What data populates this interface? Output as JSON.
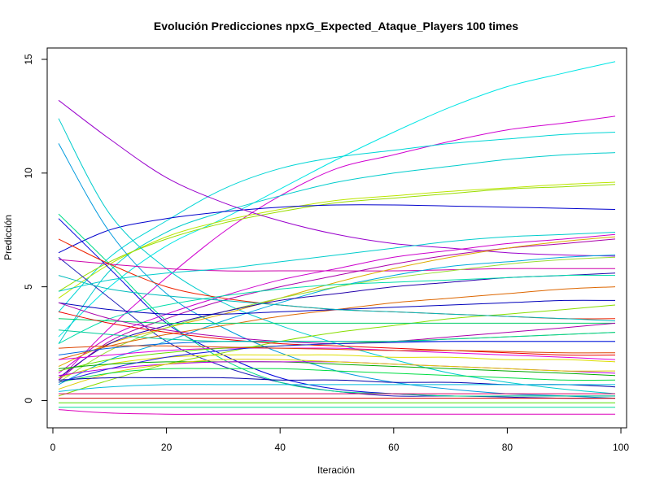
{
  "chart_data": {
    "type": "line",
    "title": "Evolución Predicciones npxG_Expected_Ataque_Players 100 times",
    "xlabel": "Iteración",
    "ylabel": "Predicción",
    "xlim": [
      -1,
      101
    ],
    "ylim": [
      -1.2,
      15.5
    ],
    "xticks": [
      0,
      20,
      40,
      60,
      80,
      100
    ],
    "yticks": [
      0,
      5,
      10,
      15
    ],
    "grid": false,
    "legend": "none",
    "x": [
      1,
      10,
      20,
      30,
      40,
      50,
      60,
      70,
      80,
      90,
      99
    ],
    "series": [
      {
        "color": "#00E5E5",
        "values": [
          2.8,
          5.0,
          6.8,
          8.0,
          9.3,
          10.6,
          11.8,
          12.9,
          13.8,
          14.4,
          14.9
        ]
      },
      {
        "color": "#D000D0",
        "values": [
          0.9,
          3.2,
          5.4,
          7.4,
          9.0,
          10.2,
          10.8,
          11.4,
          11.9,
          12.2,
          12.5
        ]
      },
      {
        "color": "#00D5D5",
        "values": [
          3.9,
          6.3,
          7.9,
          9.3,
          10.2,
          10.7,
          11.0,
          11.3,
          11.5,
          11.7,
          11.8
        ]
      },
      {
        "color": "#00CCCC",
        "values": [
          2.5,
          5.7,
          7.4,
          8.3,
          9.0,
          9.6,
          10.0,
          10.3,
          10.6,
          10.8,
          10.9
        ]
      },
      {
        "color": "#BBE500",
        "values": [
          4.5,
          6.0,
          7.2,
          7.9,
          8.4,
          8.8,
          9.0,
          9.2,
          9.35,
          9.5,
          9.6
        ]
      },
      {
        "color": "#99DD00",
        "values": [
          4.8,
          6.1,
          7.1,
          7.8,
          8.3,
          8.7,
          8.9,
          9.1,
          9.3,
          9.4,
          9.5
        ]
      },
      {
        "color": "#0000CC",
        "values": [
          6.5,
          7.5,
          8.0,
          8.3,
          8.5,
          8.6,
          8.6,
          8.55,
          8.5,
          8.45,
          8.4
        ]
      },
      {
        "color": "#9900CC",
        "values": [
          13.2,
          11.5,
          9.8,
          8.7,
          7.9,
          7.3,
          6.9,
          6.7,
          6.5,
          6.4,
          6.35
        ]
      },
      {
        "color": "#00CCCC",
        "values": [
          12.4,
          8.2,
          5.8,
          4.3,
          3.3,
          2.5,
          1.8,
          1.2,
          0.8,
          0.5,
          0.3
        ]
      },
      {
        "color": "#0099DD",
        "values": [
          11.3,
          7.4,
          4.7,
          3.2,
          2.1,
          1.3,
          0.8,
          0.5,
          0.3,
          0.2,
          0.1
        ]
      },
      {
        "color": "#0000DD",
        "values": [
          8.0,
          5.8,
          3.4,
          2.0,
          1.0,
          0.5,
          0.3,
          0.2,
          0.2,
          0.2,
          0.2
        ]
      },
      {
        "color": "#2222BB",
        "values": [
          6.3,
          4.5,
          2.6,
          1.5,
          0.8,
          0.4,
          0.2,
          0.2,
          0.15,
          0.1,
          0.1
        ]
      },
      {
        "color": "#00DD88",
        "values": [
          8.2,
          6.0,
          3.5,
          1.8,
          0.8,
          0.4,
          0.3,
          0.2,
          0.2,
          0.2,
          0.2
        ]
      },
      {
        "color": "#EE2200",
        "values": [
          7.1,
          6.0,
          5.0,
          4.5,
          4.2,
          4.0,
          3.9,
          3.8,
          3.7,
          3.6,
          3.6
        ]
      },
      {
        "color": "#CC00AA",
        "values": [
          6.2,
          6.0,
          5.8,
          5.7,
          5.7,
          5.7,
          5.7,
          5.75,
          5.8,
          5.8,
          5.8
        ]
      },
      {
        "color": "#00CCCC",
        "values": [
          4.8,
          5.3,
          5.6,
          5.8,
          6.1,
          6.4,
          6.7,
          7.0,
          7.2,
          7.3,
          7.4
        ]
      },
      {
        "color": "#CC00CC",
        "values": [
          1.2,
          2.8,
          3.8,
          4.6,
          5.3,
          5.8,
          6.3,
          6.6,
          6.9,
          7.1,
          7.3
        ]
      },
      {
        "color": "#AA00AA",
        "values": [
          0.9,
          2.6,
          3.6,
          4.4,
          5.0,
          5.5,
          6.0,
          6.4,
          6.7,
          6.9,
          7.1
        ]
      },
      {
        "color": "#DDAA00",
        "values": [
          1.5,
          2.5,
          3.2,
          3.8,
          4.5,
          5.2,
          5.8,
          6.3,
          6.7,
          7.0,
          7.2
        ]
      },
      {
        "color": "#00AADD",
        "values": [
          0.7,
          1.8,
          2.6,
          3.5,
          4.3,
          5.0,
          5.5,
          5.9,
          6.1,
          6.3,
          6.4
        ]
      },
      {
        "color": "#99DD33",
        "values": [
          0.8,
          2.2,
          3.2,
          3.9,
          4.5,
          5.0,
          5.4,
          5.7,
          6.0,
          6.2,
          6.3
        ]
      },
      {
        "color": "#2200AA",
        "values": [
          1.0,
          2.5,
          3.3,
          3.9,
          4.4,
          4.7,
          5.0,
          5.2,
          5.4,
          5.5,
          5.6
        ]
      },
      {
        "color": "#00DDAA",
        "values": [
          2.5,
          3.6,
          4.2,
          4.6,
          4.9,
          5.1,
          5.2,
          5.3,
          5.4,
          5.5,
          5.5
        ]
      },
      {
        "color": "#DD6600",
        "values": [
          1.8,
          2.4,
          2.9,
          3.3,
          3.7,
          4.0,
          4.3,
          4.5,
          4.7,
          4.9,
          5.0
        ]
      },
      {
        "color": "#0000BB",
        "values": [
          4.3,
          4.0,
          3.8,
          3.8,
          3.9,
          4.0,
          4.1,
          4.2,
          4.3,
          4.4,
          4.4
        ]
      },
      {
        "color": "#88DD00",
        "values": [
          0.2,
          0.9,
          1.6,
          2.1,
          2.6,
          3.0,
          3.3,
          3.6,
          3.8,
          4.0,
          4.2
        ]
      },
      {
        "color": "#00BBBB",
        "values": [
          5.5,
          4.9,
          4.6,
          4.4,
          4.2,
          4.0,
          3.9,
          3.8,
          3.7,
          3.6,
          3.5
        ]
      },
      {
        "color": "#00CC66",
        "values": [
          3.6,
          3.5,
          3.4,
          3.4,
          3.4,
          3.4,
          3.4,
          3.4,
          3.4,
          3.4,
          3.4
        ]
      },
      {
        "color": "#AA00AA",
        "values": [
          4.3,
          3.6,
          3.1,
          2.8,
          2.6,
          2.5,
          2.6,
          2.8,
          3.0,
          3.2,
          3.4
        ]
      },
      {
        "color": "#EE0000",
        "values": [
          3.9,
          3.4,
          3.0,
          2.7,
          2.5,
          2.4,
          2.3,
          2.2,
          2.1,
          2.0,
          2.0
        ]
      },
      {
        "color": "#DD00DD",
        "values": [
          1.8,
          2.0,
          2.2,
          2.3,
          2.3,
          2.3,
          2.2,
          2.1,
          2.0,
          1.9,
          1.8
        ]
      },
      {
        "color": "#66DD00",
        "values": [
          1.3,
          1.8,
          2.1,
          2.3,
          2.4,
          2.5,
          2.6,
          2.7,
          2.8,
          2.9,
          3.0
        ]
      },
      {
        "color": "#0066DD",
        "values": [
          2.0,
          2.3,
          2.5,
          2.6,
          2.6,
          2.6,
          2.6,
          2.6,
          2.6,
          2.6,
          2.6
        ]
      },
      {
        "color": "#DDDD00",
        "values": [
          1.0,
          1.6,
          1.9,
          2.0,
          2.0,
          2.0,
          1.9,
          1.9,
          1.8,
          1.8,
          1.7
        ]
      },
      {
        "color": "#00AA00",
        "values": [
          1.4,
          1.6,
          1.7,
          1.7,
          1.7,
          1.6,
          1.5,
          1.4,
          1.3,
          1.2,
          1.1
        ]
      },
      {
        "color": "#BB00DD",
        "values": [
          1.1,
          1.4,
          1.6,
          1.7,
          1.7,
          1.7,
          1.6,
          1.5,
          1.4,
          1.3,
          1.2
        ]
      },
      {
        "color": "#DDCC00",
        "values": [
          0.5,
          1.2,
          1.6,
          1.8,
          1.8,
          1.7,
          1.6,
          1.5,
          1.4,
          1.3,
          1.3
        ]
      },
      {
        "color": "#00DD44",
        "values": [
          0.8,
          1.2,
          1.4,
          1.4,
          1.4,
          1.3,
          1.2,
          1.1,
          1.0,
          0.9,
          0.9
        ]
      },
      {
        "color": "#0000AA",
        "values": [
          0.9,
          1.0,
          1.0,
          1.0,
          0.9,
          0.9,
          0.8,
          0.8,
          0.7,
          0.7,
          0.6
        ]
      },
      {
        "color": "#00BBDD",
        "values": [
          0.4,
          0.6,
          0.7,
          0.7,
          0.7,
          0.7,
          0.7,
          0.7,
          0.7,
          0.7,
          0.7
        ]
      },
      {
        "color": "#DD0066",
        "values": [
          0.3,
          0.3,
          0.3,
          0.3,
          0.3,
          0.3,
          0.3,
          0.3,
          0.3,
          0.3,
          0.3
        ]
      },
      {
        "color": "#CC0000",
        "values": [
          0.1,
          0.1,
          0.1,
          0.1,
          0.1,
          0.1,
          0.1,
          0.1,
          0.1,
          0.1,
          0.1
        ]
      },
      {
        "color": "#55DD00",
        "values": [
          -0.1,
          -0.1,
          -0.1,
          -0.1,
          -0.1,
          -0.1,
          -0.1,
          -0.1,
          -0.1,
          -0.1,
          -0.1
        ]
      },
      {
        "color": "#00DD99",
        "values": [
          -0.3,
          -0.3,
          -0.3,
          -0.3,
          -0.3,
          -0.3,
          -0.3,
          -0.3,
          -0.3,
          -0.3,
          -0.3
        ]
      },
      {
        "color": "#DD00BB",
        "values": [
          -0.4,
          -0.55,
          -0.6,
          -0.6,
          -0.6,
          -0.6,
          -0.6,
          -0.6,
          -0.6,
          -0.6,
          -0.6
        ]
      },
      {
        "color": "#2222DD",
        "values": [
          0.8,
          1.4,
          1.9,
          2.2,
          2.4,
          2.5,
          2.55,
          2.6,
          2.6,
          2.6,
          2.6
        ]
      },
      {
        "color": "#DD4400",
        "values": [
          2.3,
          2.4,
          2.4,
          2.35,
          2.3,
          2.25,
          2.2,
          2.2,
          2.15,
          2.1,
          2.1
        ]
      },
      {
        "color": "#00CC99",
        "values": [
          3.1,
          2.9,
          2.7,
          2.6,
          2.6,
          2.6,
          2.6,
          2.7,
          2.8,
          2.9,
          3.0
        ]
      }
    ]
  }
}
